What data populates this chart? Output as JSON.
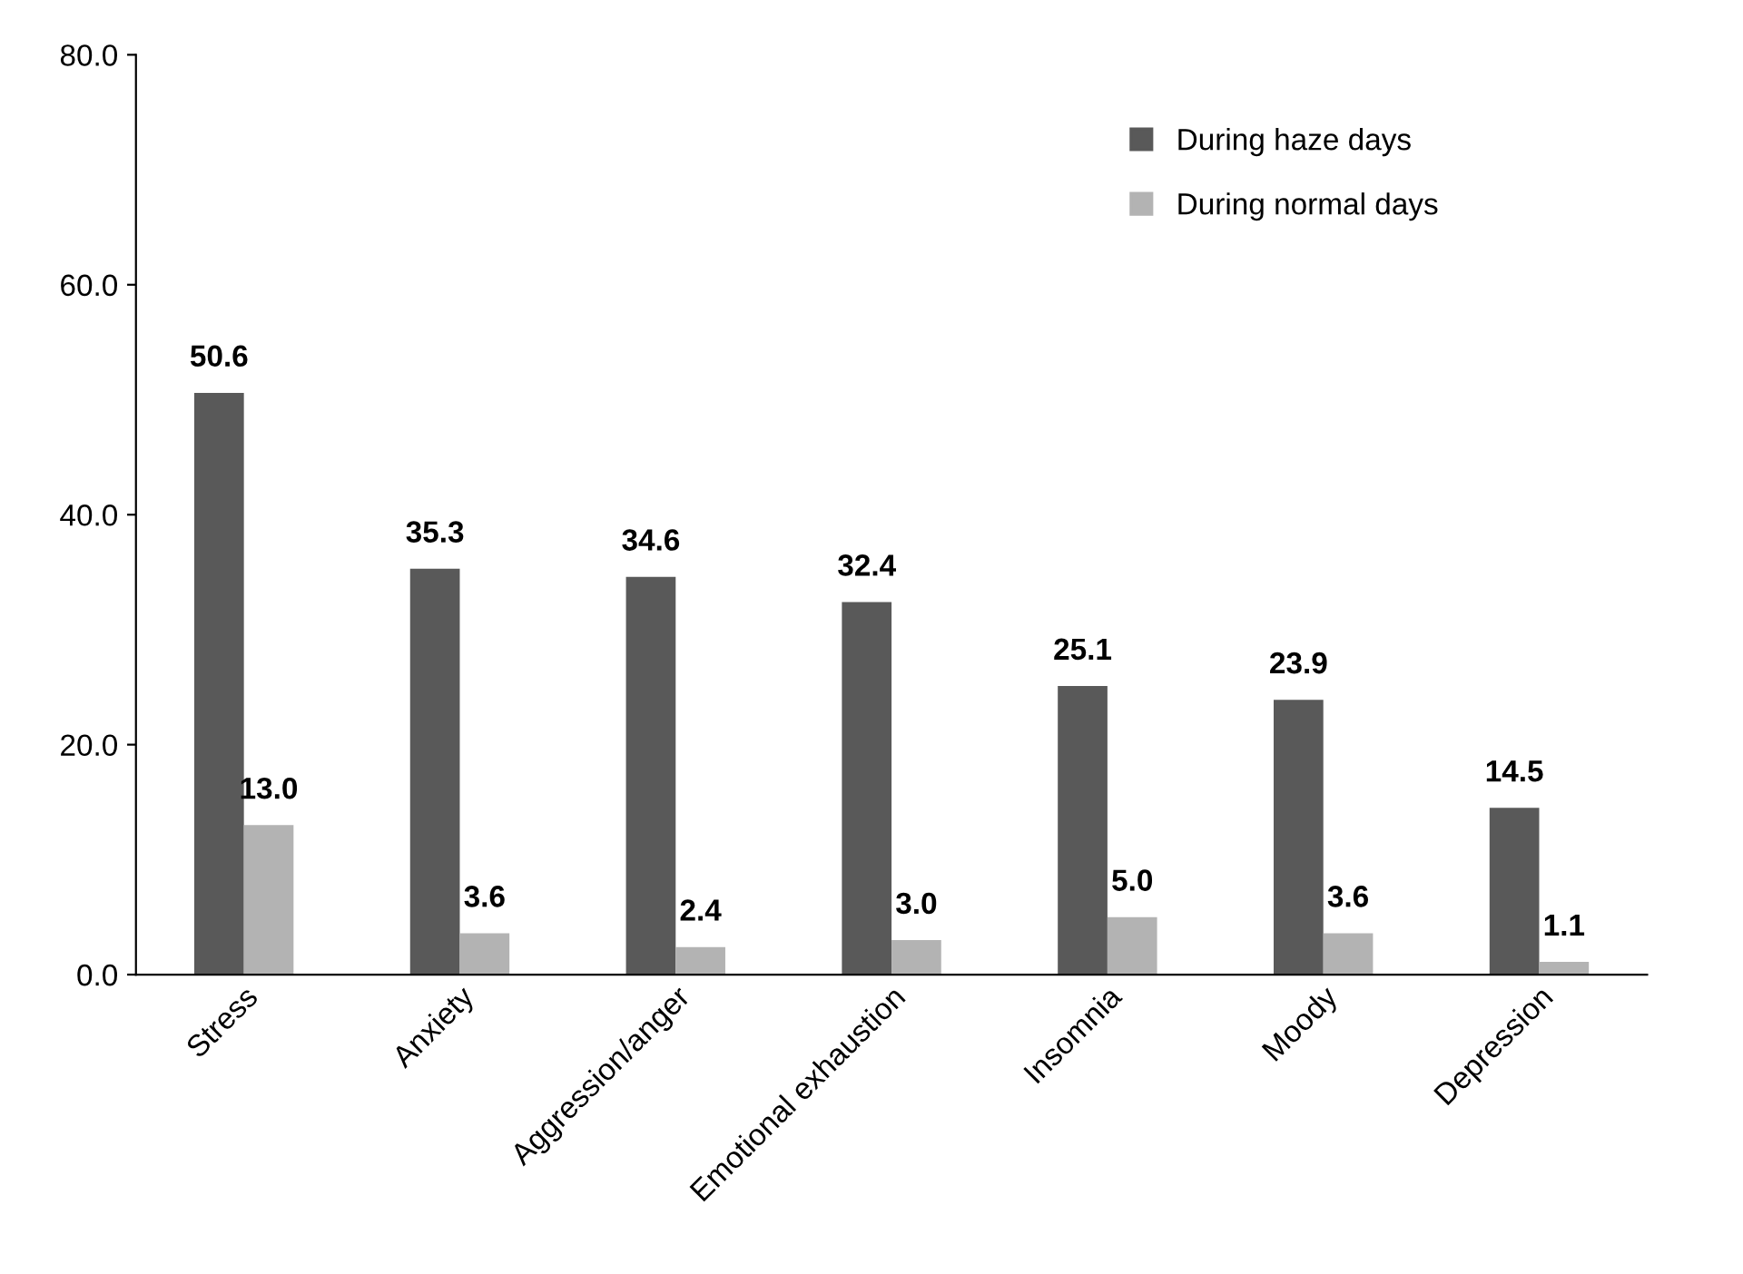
{
  "chart_data": {
    "type": "bar",
    "categories": [
      "Stress",
      "Anxiety",
      "Aggression/anger",
      "Emotional exhaustion",
      "Insomnia",
      "Moody",
      "Depression"
    ],
    "series": [
      {
        "name": "During haze days",
        "color": "#595959",
        "values": [
          50.6,
          35.3,
          34.6,
          32.4,
          25.1,
          23.9,
          14.5
        ],
        "value_labels": [
          "50.6",
          "35.3",
          "34.6",
          "32.4",
          "25.1",
          "23.9",
          "14.5"
        ]
      },
      {
        "name": "During normal days",
        "color": "#b3b3b3",
        "values": [
          13.0,
          3.6,
          2.4,
          3.0,
          5.0,
          3.6,
          1.1
        ],
        "value_labels": [
          "13.0",
          "3.6",
          "2.4",
          "3.0",
          "5.0",
          "3.6",
          "1.1"
        ]
      }
    ],
    "ylim": [
      0,
      80
    ],
    "yticks": [
      {
        "value": 0,
        "label": "0.0"
      },
      {
        "value": 20,
        "label": "20.0"
      },
      {
        "value": 40,
        "label": "40.0"
      },
      {
        "value": 60,
        "label": "60.0"
      },
      {
        "value": 80,
        "label": "80.0"
      }
    ],
    "grid": false,
    "legend": "top right"
  }
}
